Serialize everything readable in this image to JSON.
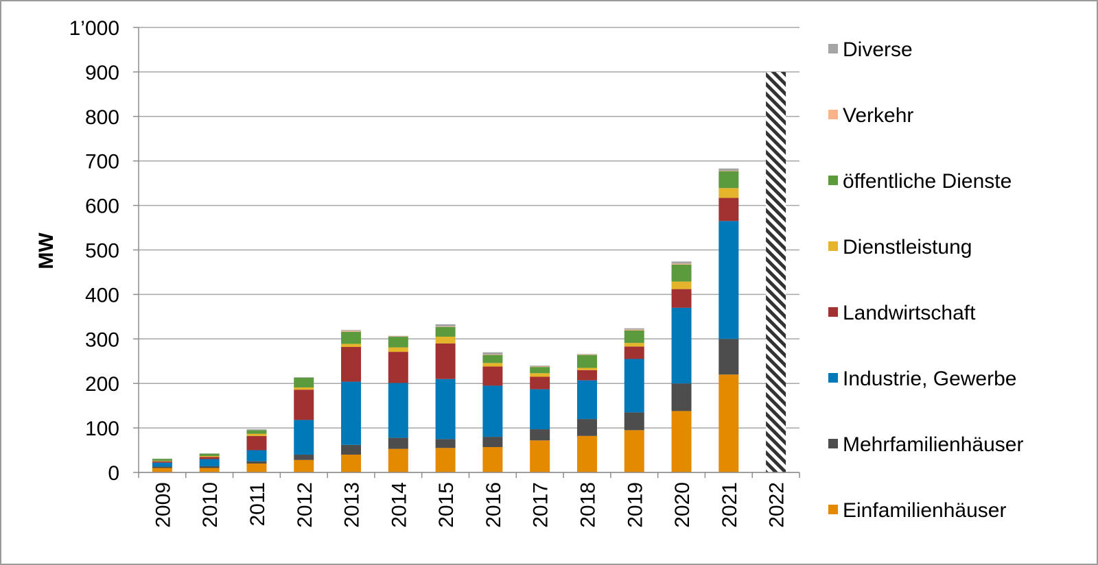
{
  "chart_data": {
    "type": "bar",
    "stacked": true,
    "ylabel": "MW",
    "xlabel": "",
    "ylim": [
      0,
      1000
    ],
    "yticks": [
      0,
      100,
      200,
      300,
      400,
      500,
      600,
      700,
      800,
      900,
      1000
    ],
    "ytick_labels": [
      "0",
      "100",
      "200",
      "300",
      "400",
      "500",
      "600",
      "700",
      "800",
      "900",
      "1’000"
    ],
    "grid": true,
    "legend_position": "right",
    "categories": [
      "2009",
      "2010",
      "2011",
      "2012",
      "2013",
      "2014",
      "2015",
      "2016",
      "2017",
      "2018",
      "2019",
      "2020",
      "2021",
      "2022"
    ],
    "series": [
      {
        "name": "Einfamilienhäuser",
        "color": "#E38A00",
        "values": [
          10,
          10,
          20,
          28,
          40,
          53,
          55,
          57,
          72,
          82,
          95,
          138,
          220,
          0
        ]
      },
      {
        "name": "Mehrfamilienhäuser",
        "color": "#4D4D4D",
        "values": [
          3,
          4,
          5,
          12,
          22,
          25,
          20,
          23,
          25,
          38,
          40,
          62,
          80,
          0
        ]
      },
      {
        "name": "Industrie, Gewerbe",
        "color": "#0079B8",
        "values": [
          9,
          16,
          25,
          78,
          142,
          123,
          135,
          115,
          90,
          87,
          120,
          170,
          265,
          0
        ]
      },
      {
        "name": "Landwirtschaft",
        "color": "#A23232",
        "values": [
          3,
          5,
          32,
          68,
          78,
          70,
          80,
          43,
          28,
          23,
          28,
          42,
          52,
          0
        ]
      },
      {
        "name": "Dienstleistung",
        "color": "#E4B42A",
        "values": [
          1,
          2,
          5,
          5,
          7,
          10,
          15,
          8,
          8,
          5,
          8,
          17,
          22,
          0
        ]
      },
      {
        "name": "öffentliche Dienste",
        "color": "#5B9A3D",
        "values": [
          4,
          5,
          8,
          22,
          27,
          24,
          22,
          18,
          14,
          29,
          28,
          38,
          38,
          0
        ]
      },
      {
        "name": "Verkehr",
        "color": "#F9B48A",
        "values": [
          0,
          0,
          0,
          0,
          2,
          1,
          1,
          1,
          1,
          1,
          2,
          2,
          1,
          0
        ]
      },
      {
        "name": "Diverse",
        "color": "#A5A5A5",
        "values": [
          1,
          1,
          2,
          1,
          2,
          1,
          5,
          5,
          2,
          1,
          3,
          5,
          5,
          0
        ]
      }
    ],
    "forecast": {
      "category": "2022",
      "value": 900,
      "pattern": "hatched"
    }
  }
}
